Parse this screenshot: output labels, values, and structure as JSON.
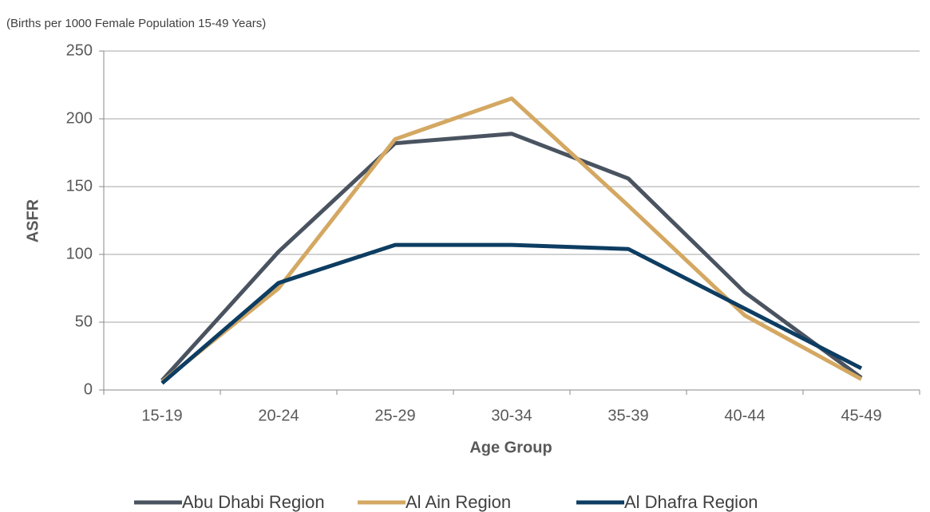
{
  "chart_data": {
    "type": "line",
    "subtitle": "(Births per 1000 Female Population 15-49 Years)",
    "y_label": "ASFR",
    "x_label": "Age Group",
    "categories": [
      "15-19",
      "20-24",
      "25-29",
      "30-34",
      "35-39",
      "40-44",
      "45-49"
    ],
    "series": [
      {
        "name": "Abu Dhabi Region",
        "color": "#4a5360",
        "values": [
          7,
          102,
          182,
          189,
          156,
          72,
          9
        ]
      },
      {
        "name": "Al Ain Region",
        "color": "#d4a862",
        "values": [
          6,
          75,
          185,
          215,
          136,
          55,
          8
        ]
      },
      {
        "name": "Al Dhafra Region",
        "color": "#0d3d62",
        "values": [
          5,
          79,
          107,
          107,
          104,
          60,
          16
        ]
      }
    ],
    "ylim": [
      0,
      250
    ],
    "yticks": [
      0,
      50,
      100,
      150,
      200,
      250
    ],
    "grid": true,
    "legend": "bottom"
  }
}
